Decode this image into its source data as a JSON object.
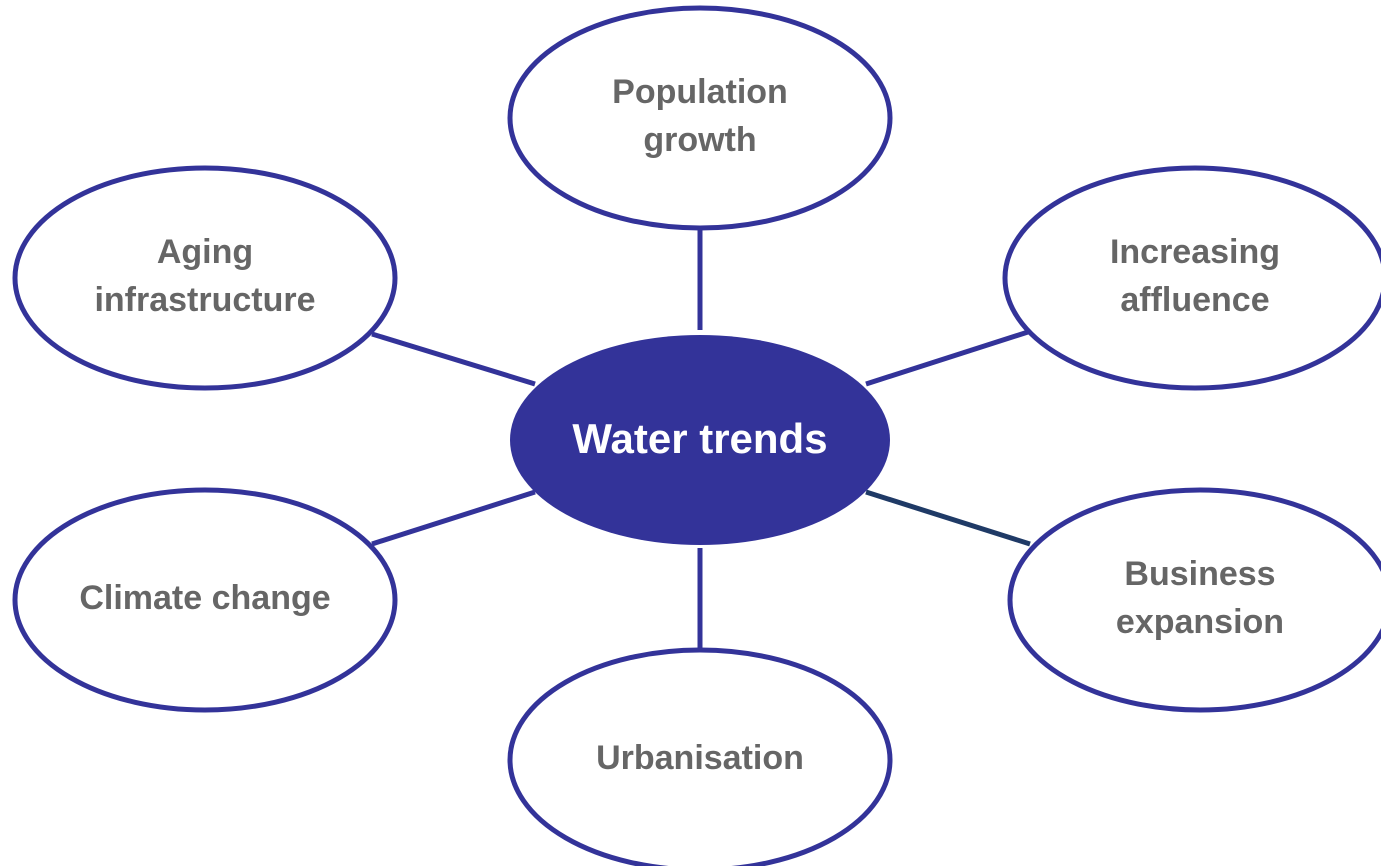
{
  "center": {
    "label": "Water trends"
  },
  "nodes": [
    {
      "label": [
        "Population",
        "growth"
      ]
    },
    {
      "label": [
        "Increasing",
        "affluence"
      ]
    },
    {
      "label": [
        "Business",
        "expansion"
      ]
    },
    {
      "label": [
        "Urbanisation"
      ]
    },
    {
      "label": [
        "Climate change"
      ]
    },
    {
      "label": [
        "Aging",
        "infrastructure"
      ]
    }
  ]
}
